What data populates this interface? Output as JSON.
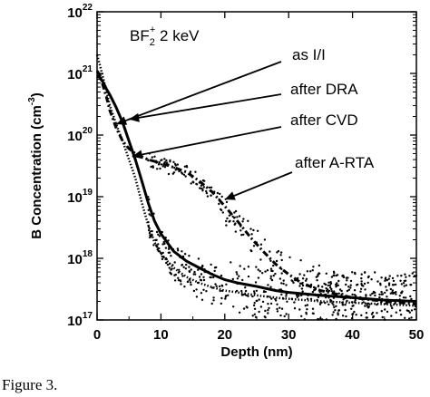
{
  "figure": {
    "caption": "Figure 3."
  },
  "chart_data": {
    "type": "scatter",
    "title": "",
    "xlabel": "Depth (nm)",
    "ylabel": "B Concentration (cm",
    "ylabel_exp": "-3",
    "ylabel_close": ")",
    "xlim": [
      0,
      50
    ],
    "ylim": [
      1e+17,
      1e+22
    ],
    "yscale": "log",
    "x_ticks": [
      0,
      10,
      20,
      30,
      40,
      50
    ],
    "x_tick_labels": [
      "0",
      "10",
      "20",
      "30",
      "40",
      "50"
    ],
    "y_ticks": [
      1e+17,
      1e+18,
      1e+19,
      1e+20,
      1e+21,
      1e+22
    ],
    "y_tick_labels": [
      {
        "base": "10",
        "exp": "17"
      },
      {
        "base": "10",
        "exp": "18"
      },
      {
        "base": "10",
        "exp": "19"
      },
      {
        "base": "10",
        "exp": "20"
      },
      {
        "base": "10",
        "exp": "21"
      },
      {
        "base": "10",
        "exp": "22"
      }
    ],
    "grid": false,
    "legend": "none",
    "inset_label": {
      "pre": "BF",
      "sub": "2",
      "sup": "+",
      "post": " 2 keV"
    },
    "annotations": [
      {
        "text": "as I/I",
        "target": [
          3,
          1.5e+20
        ]
      },
      {
        "text": "after DRA",
        "target": [
          5,
          1.8e+20
        ]
      },
      {
        "text": "after CVD",
        "target": [
          5.5,
          4.5e+19
        ]
      },
      {
        "text": "after A-RTA",
        "target": [
          20,
          9e+18
        ]
      }
    ],
    "series": [
      {
        "style": "solid",
        "x": [
          0,
          0.5,
          1,
          1.5,
          2,
          3,
          4,
          5,
          6,
          7,
          8,
          9,
          10,
          11,
          12,
          14,
          16,
          18,
          20,
          22,
          25,
          28,
          30,
          35,
          40,
          45,
          50
        ],
        "y": [
          9e+20,
          8.5e+20,
          7e+20,
          5.5e+20,
          4.5e+20,
          2.8e+20,
          1.6e+20,
          8e+19,
          4e+19,
          1.8e+19,
          8e+18,
          4e+18,
          2.5e+18,
          1.8e+18,
          1.3e+18,
          9e+17,
          7e+17,
          5.5e+17,
          4.5e+17,
          4e+17,
          3.5e+17,
          3e+17,
          2.8e+17,
          2.5e+17,
          2.3e+17,
          2.1e+17,
          2e+17
        ]
      },
      {
        "style": "dotted",
        "x": [
          0,
          0.5,
          1,
          1.5,
          2,
          3,
          4,
          5,
          6,
          7,
          8,
          9,
          10,
          11,
          12,
          14,
          16,
          18,
          20,
          22,
          25,
          28,
          30,
          35,
          40,
          45,
          50
        ],
        "y": [
          2e+21,
          1.3e+21,
          8e+20,
          5e+20,
          3e+20,
          1.5e+20,
          8e+19,
          4e+19,
          2e+19,
          8e+18,
          3.5e+18,
          1.8e+18,
          1.2e+18,
          9e+17,
          7e+17,
          5e+17,
          4e+17,
          3.4e+17,
          3e+17,
          2.8e+17,
          2.5e+17,
          2.3e+17,
          2.2e+17,
          2e+17,
          1.9e+17,
          1.8e+17,
          1.7e+17
        ]
      },
      {
        "style": "dash-dot",
        "x": [
          0,
          0.5,
          1,
          1.5,
          2,
          3,
          4,
          5,
          6,
          8,
          10,
          12,
          14,
          16,
          18,
          20,
          22,
          24,
          26,
          28,
          30,
          32,
          35,
          40,
          45,
          50
        ],
        "y": [
          1.1e+21,
          9e+20,
          6e+20,
          4e+20,
          2.5e+20,
          1.3e+20,
          8e+19,
          6e+19,
          5e+19,
          4e+19,
          3.5e+19,
          3e+19,
          2.5e+19,
          1.8e+19,
          1.2e+19,
          7e+18,
          4e+18,
          2.2e+18,
          1.3e+18,
          8e+17,
          5.5e+17,
          4e+17,
          3e+17,
          2.3e+17,
          2e+17,
          1.8e+17
        ]
      }
    ]
  }
}
